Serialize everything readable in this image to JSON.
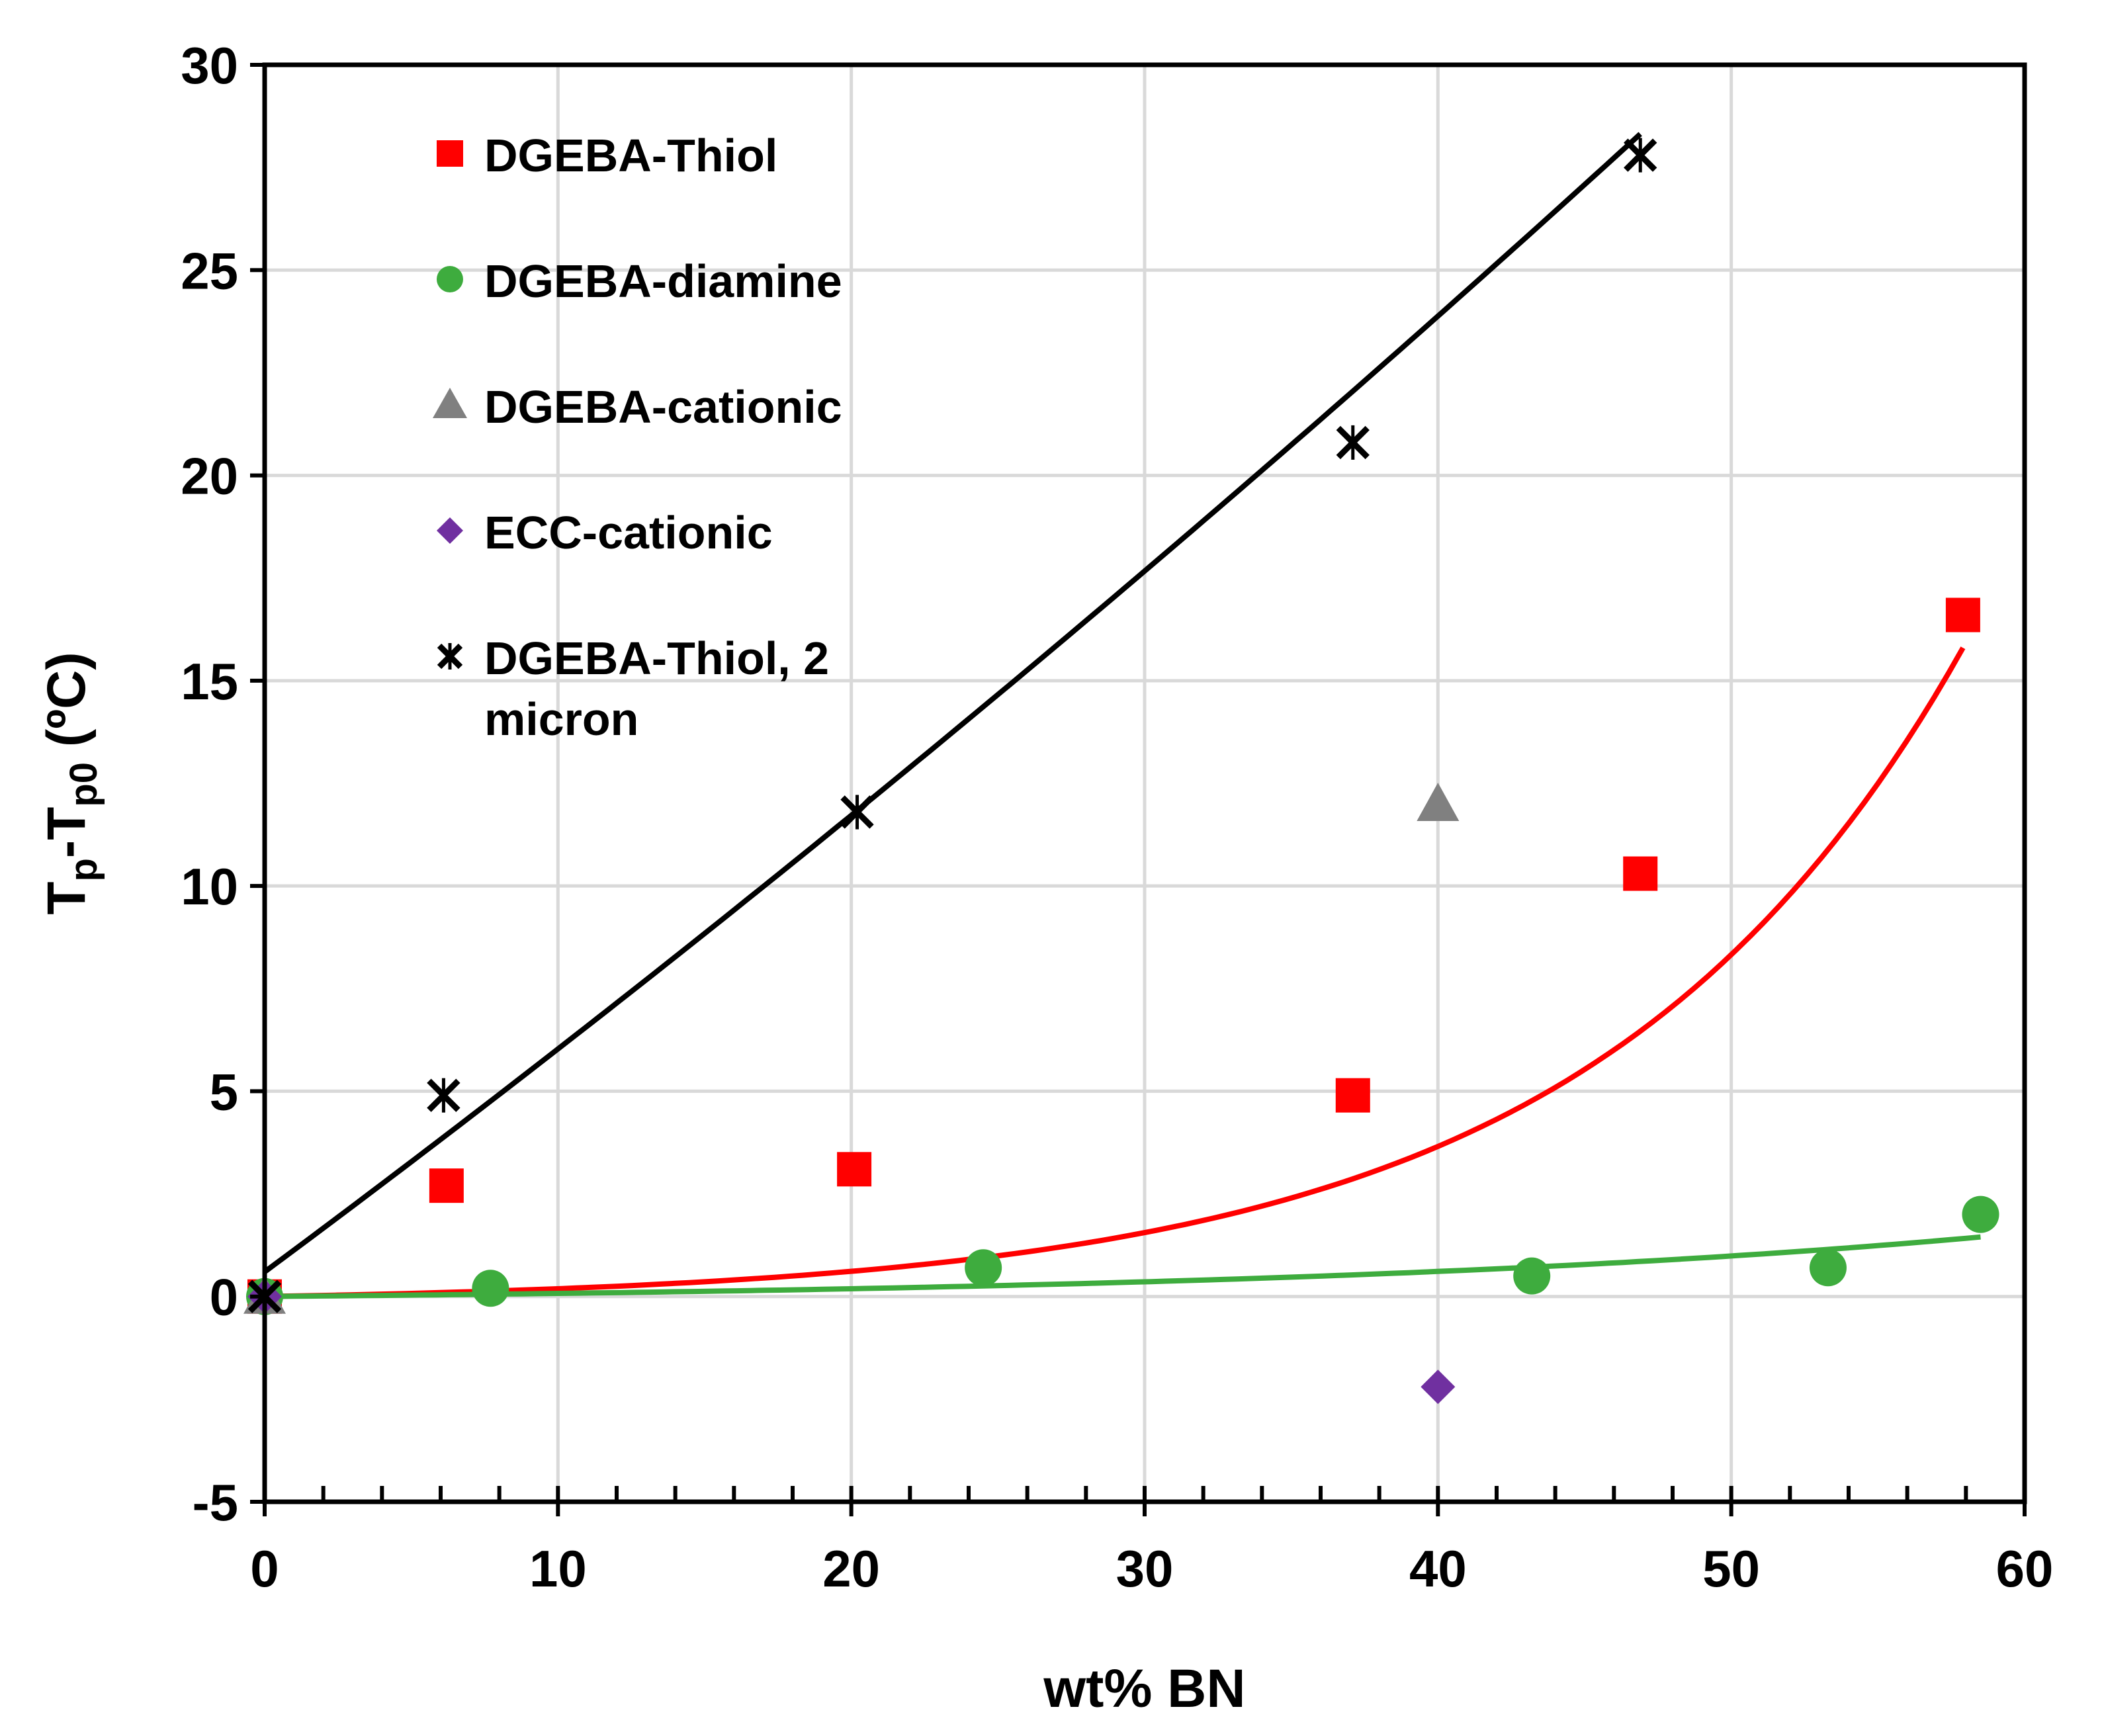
{
  "chart_data": {
    "type": "scatter",
    "xlabel": "wt% BN",
    "ylabel": {
      "main": "T",
      "sub1": "p",
      "mid": "-T",
      "sub2": "p0",
      "unit": " (ºC)"
    },
    "xlim": [
      0,
      60
    ],
    "ylim": [
      -5,
      30
    ],
    "xticks": [
      0,
      10,
      20,
      30,
      40,
      50,
      60
    ],
    "yticks": [
      -5,
      0,
      5,
      10,
      15,
      20,
      25,
      30
    ],
    "x_minor_step": 2,
    "grid": true,
    "legend_position": "top-left",
    "series": [
      {
        "name": "DGEBA-Thiol",
        "marker": "square",
        "color": "#ff0000",
        "points": [
          [
            0,
            0
          ],
          [
            6.2,
            2.7
          ],
          [
            20.1,
            3.1
          ],
          [
            37.1,
            4.9
          ],
          [
            46.9,
            10.3
          ],
          [
            57.9,
            16.6
          ]
        ],
        "fit": {
          "form": "exponential",
          "a": 0,
          "b": 0.08,
          "x_range": [
            0,
            57.9
          ]
        }
      },
      {
        "name": "DGEBA-diamine",
        "marker": "circle",
        "color": "#3eac3e",
        "points": [
          [
            0,
            0
          ],
          [
            7.7,
            0.2
          ],
          [
            24.5,
            0.7
          ],
          [
            43.2,
            0.5
          ],
          [
            53.3,
            0.7
          ],
          [
            58.5,
            2.0
          ]
        ],
        "fit": {
          "form": "exponential",
          "a": 0,
          "b": 0.04,
          "x_range": [
            0,
            58.5
          ]
        }
      },
      {
        "name": "DGEBA-cationic",
        "marker": "triangle",
        "color": "#808080",
        "points": [
          [
            0,
            0
          ],
          [
            40,
            12.0
          ]
        ]
      },
      {
        "name": "ECC-cationic",
        "marker": "diamond",
        "color": "#7030a0",
        "points": [
          [
            0,
            0
          ],
          [
            40,
            -2.2
          ]
        ]
      },
      {
        "name": "DGEBA-Thiol, 2 micron",
        "legend_lines": [
          "DGEBA-Thiol, 2",
          "micron"
        ],
        "marker": "star",
        "color": "#000000",
        "points": [
          [
            0,
            0
          ],
          [
            6.1,
            4.9
          ],
          [
            20.2,
            11.8
          ],
          [
            37.1,
            20.8
          ],
          [
            46.9,
            27.8
          ]
        ],
        "fit": {
          "form": "quadratic",
          "c0": 0.6,
          "c1": 0.53,
          "c2": 0.0013,
          "x_range": [
            0,
            46.9
          ]
        }
      }
    ]
  }
}
